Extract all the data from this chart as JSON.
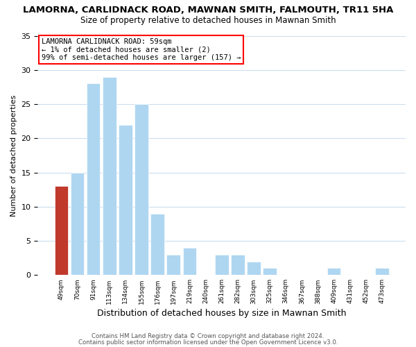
{
  "title": "LAMORNA, CARLIDNACK ROAD, MAWNAN SMITH, FALMOUTH, TR11 5HA",
  "subtitle": "Size of property relative to detached houses in Mawnan Smith",
  "xlabel": "Distribution of detached houses by size in Mawnan Smith",
  "ylabel": "Number of detached properties",
  "categories": [
    "49sqm",
    "70sqm",
    "91sqm",
    "113sqm",
    "134sqm",
    "155sqm",
    "176sqm",
    "197sqm",
    "219sqm",
    "240sqm",
    "261sqm",
    "282sqm",
    "303sqm",
    "325sqm",
    "346sqm",
    "367sqm",
    "388sqm",
    "409sqm",
    "431sqm",
    "452sqm",
    "473sqm"
  ],
  "values": [
    13,
    15,
    28,
    29,
    22,
    25,
    9,
    3,
    4,
    0,
    3,
    3,
    2,
    1,
    0,
    0,
    0,
    1,
    0,
    0,
    1
  ],
  "bar_color": "#aed6f1",
  "highlight_bar_color": "#c0392b",
  "highlight_index": 0,
  "ylim": [
    0,
    35
  ],
  "yticks": [
    0,
    5,
    10,
    15,
    20,
    25,
    30,
    35
  ],
  "annotation_title": "LAMORNA CARLIDNACK ROAD: 59sqm",
  "annotation_line1": "← 1% of detached houses are smaller (2)",
  "annotation_line2": "99% of semi-detached houses are larger (157) →",
  "footer_line1": "Contains HM Land Registry data © Crown copyright and database right 2024.",
  "footer_line2": "Contains public sector information licensed under the Open Government Licence v3.0.",
  "background_color": "#ffffff",
  "grid_color": "#ccddee"
}
